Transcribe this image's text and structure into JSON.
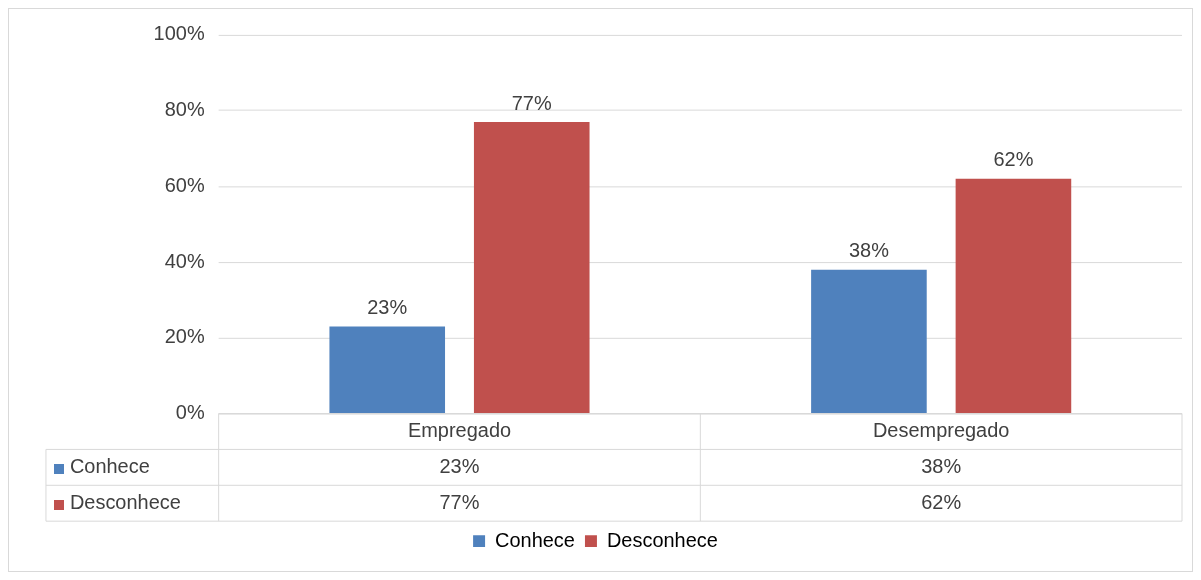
{
  "chart_data": {
    "type": "bar",
    "categories": [
      "Empregado",
      "Desempregado"
    ],
    "series": [
      {
        "name": "Conhece",
        "color": "#4f81bd",
        "values": [
          23,
          38
        ],
        "value_labels": [
          "23%",
          "38%"
        ]
      },
      {
        "name": "Desconhece",
        "color": "#c0504d",
        "values": [
          77,
          62
        ],
        "value_labels": [
          "77%",
          "62%"
        ]
      }
    ],
    "ylim": [
      0,
      100
    ],
    "yticks": [
      {
        "value": 0,
        "label": "0%"
      },
      {
        "value": 20,
        "label": "20%"
      },
      {
        "value": 40,
        "label": "40%"
      },
      {
        "value": 60,
        "label": "60%"
      },
      {
        "value": 80,
        "label": "80%"
      },
      {
        "value": 100,
        "label": "100%"
      }
    ],
    "grid": "y",
    "legend": "bottom"
  }
}
